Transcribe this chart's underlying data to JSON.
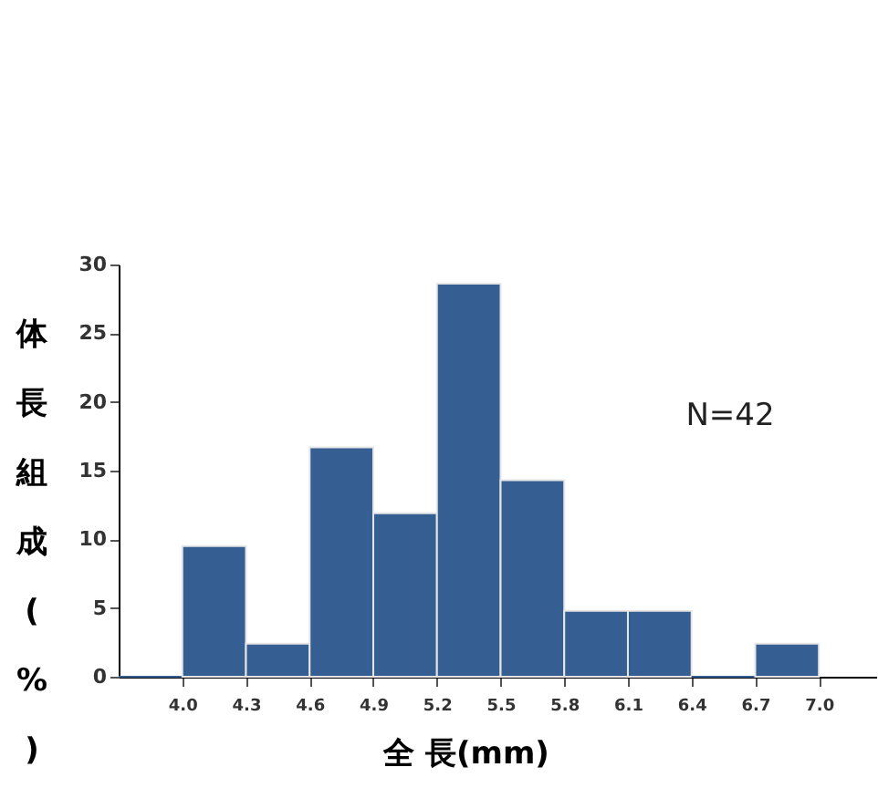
{
  "chart_data": {
    "type": "histogram",
    "xlabel": "全 長(mm)",
    "ylabel": "体長組成(%)",
    "bins": [
      3.7,
      4.0,
      4.3,
      4.6,
      4.9,
      5.2,
      5.5,
      5.8,
      6.1,
      6.4,
      6.7,
      7.0
    ],
    "values": [
      0,
      9.5,
      2.4,
      16.7,
      11.9,
      28.6,
      14.3,
      4.8,
      4.8,
      0,
      2.4
    ],
    "color": "#355f93",
    "xlim": [
      3.7,
      7.27
    ],
    "xticks": [
      {
        "value": 4,
        "label": "4.0"
      },
      4.3,
      4.6,
      4.9,
      5.2,
      5.5,
      5.8,
      6.1,
      6.4,
      6.7,
      {
        "value": 7,
        "label": "7.0"
      }
    ],
    "ylim": [
      0,
      30
    ],
    "yticks": [
      0,
      5,
      10,
      15,
      20,
      25,
      30
    ],
    "annotations": [
      "N=42"
    ],
    "grid": false
  }
}
